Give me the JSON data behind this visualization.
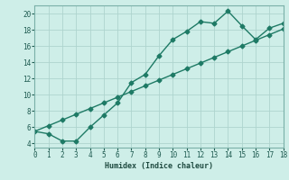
{
  "line1_x": [
    0,
    1,
    2,
    3,
    4,
    5,
    6,
    7,
    8,
    9,
    10,
    11,
    12,
    13,
    14,
    15,
    16,
    17,
    18
  ],
  "line1_y": [
    5.5,
    5.2,
    4.3,
    4.3,
    6.0,
    7.5,
    9.0,
    11.5,
    12.5,
    14.8,
    16.8,
    17.8,
    19.0,
    18.8,
    20.3,
    18.5,
    16.8,
    18.2,
    18.8
  ],
  "line2_x": [
    0,
    1,
    2,
    3,
    4,
    5,
    6,
    7,
    8,
    9,
    10,
    11,
    12,
    13,
    14,
    15,
    16,
    17,
    18
  ],
  "line2_y": [
    5.5,
    6.2,
    6.9,
    7.6,
    8.3,
    9.0,
    9.7,
    10.4,
    11.1,
    11.8,
    12.5,
    13.2,
    13.9,
    14.6,
    15.3,
    16.0,
    16.7,
    17.4,
    18.1
  ],
  "line_color": "#1e7a65",
  "marker": "D",
  "markersize": 2.5,
  "xlabel": "Humidex (Indice chaleur)",
  "xlim": [
    0,
    18
  ],
  "ylim": [
    3.5,
    21
  ],
  "xticks": [
    0,
    1,
    2,
    3,
    4,
    5,
    6,
    7,
    8,
    9,
    10,
    11,
    12,
    13,
    14,
    15,
    16,
    17,
    18
  ],
  "yticks": [
    4,
    6,
    8,
    10,
    12,
    14,
    16,
    18,
    20
  ],
  "bg_color": "#ceeee8",
  "grid_color": "#aed4ce",
  "linewidth": 1.0
}
